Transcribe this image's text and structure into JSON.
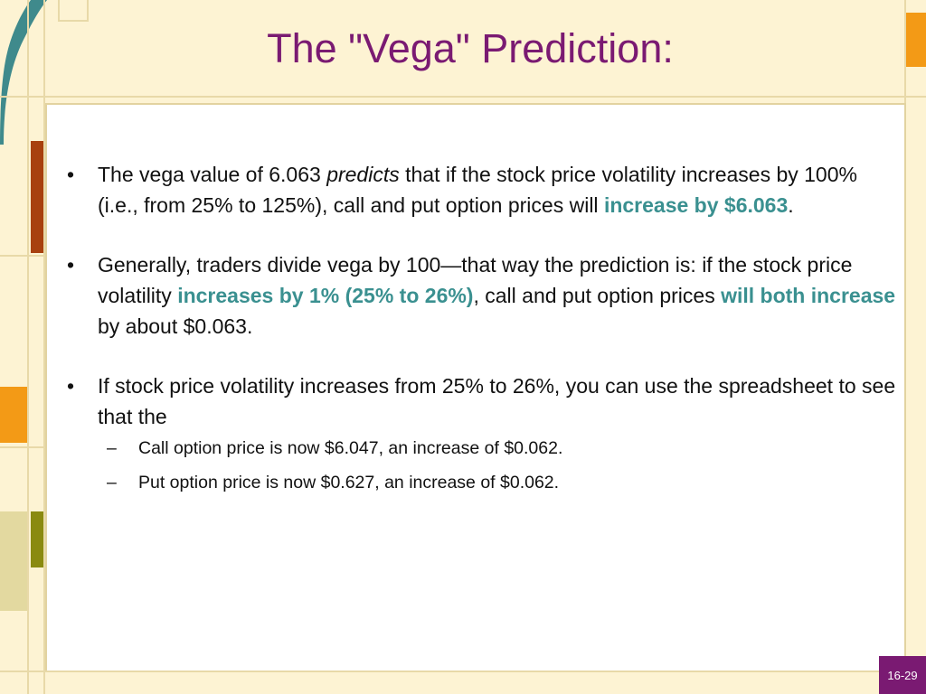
{
  "slide": {
    "title": "The \"Vega\" Prediction:",
    "page_number": "16-29",
    "bullets": [
      {
        "parts": [
          "The vega value of 6.063 ",
          "predicts",
          " that if the stock price volatility increases by 100% (i.e., from 25% to 125%), call and put option prices will ",
          "increase by $6.063",
          "."
        ]
      },
      {
        "parts": [
          "Generally, traders divide vega by 100—that way the prediction is: if the stock price volatility ",
          "increases by 1% (25% to 26%)",
          ", call and put option prices ",
          "will both increase",
          " by about $0.063."
        ]
      },
      {
        "text": "If stock price volatility increases from 25% to 26%, you can use the spreadsheet to see that the",
        "sub_items": [
          "Call option price is now $6.047, an increase of $0.062.",
          "Put option price is now $0.627, an increase of $0.062."
        ]
      }
    ],
    "sub_dash": "–"
  },
  "colors": {
    "title": "#7a1a72",
    "highlight": "#3a9090",
    "background": "#fdf3d3",
    "teal_accent": "#3f8a8c",
    "rust_accent": "#a8400e",
    "orange_accent": "#f39a16",
    "olive_accent": "#8a8a10"
  }
}
